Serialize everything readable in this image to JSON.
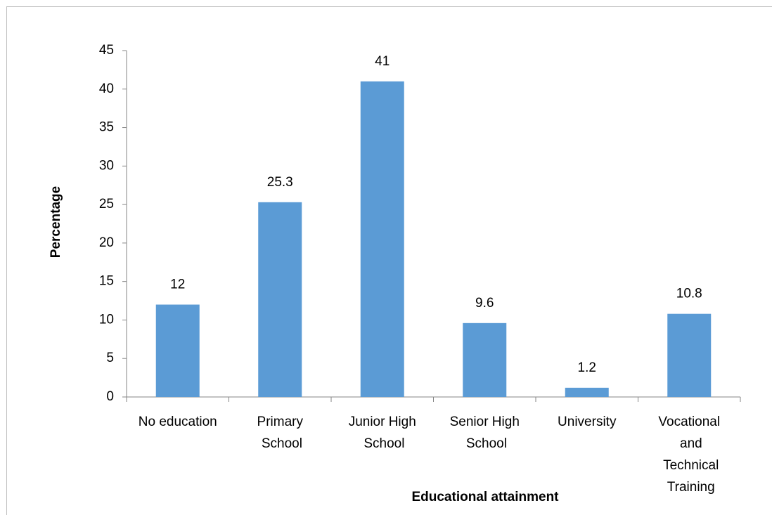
{
  "chart_data": {
    "type": "bar",
    "x_label": "Educational attainment",
    "y_label": "Percentage",
    "categories": [
      "No education",
      "Primary School",
      "Junior High School",
      "Senior High School",
      "University",
      "Vocational and Technical Training"
    ],
    "values": [
      12,
      25.3,
      41,
      9.6,
      1.2,
      10.8
    ],
    "color": "#5b9bd5",
    "ylim": [
      0,
      45
    ],
    "yticks": [
      0,
      5,
      10,
      15,
      20,
      25,
      30,
      35,
      40,
      45
    ],
    "grid": false
  }
}
